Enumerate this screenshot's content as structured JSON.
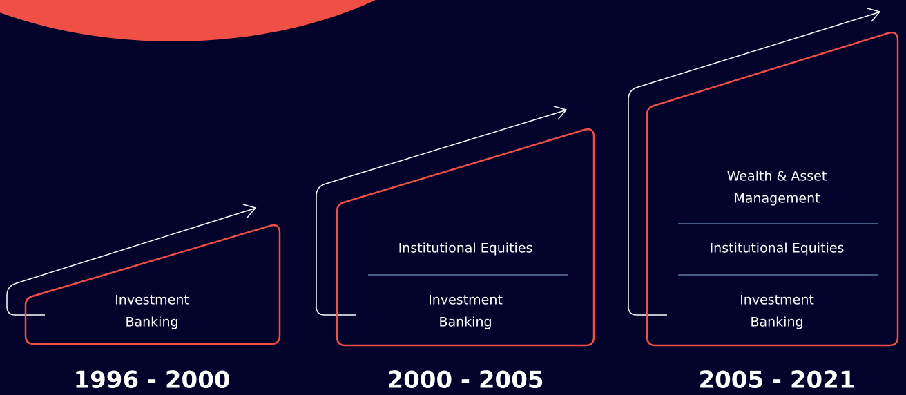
{
  "stages": [
    {
      "period": "1996 - 2000",
      "segments": [
        [
          "Investment",
          "Banking"
        ]
      ]
    },
    {
      "period": "2000 - 2005",
      "segments": [
        [
          "Institutional Equities"
        ],
        [
          "Investment",
          "Banking"
        ]
      ]
    },
    {
      "period": "2005 - 2021",
      "segments": [
        [
          "Wealth & Asset",
          "Management"
        ],
        [
          "Institutional Equities"
        ],
        [
          "Investment",
          "Banking"
        ]
      ]
    }
  ]
}
